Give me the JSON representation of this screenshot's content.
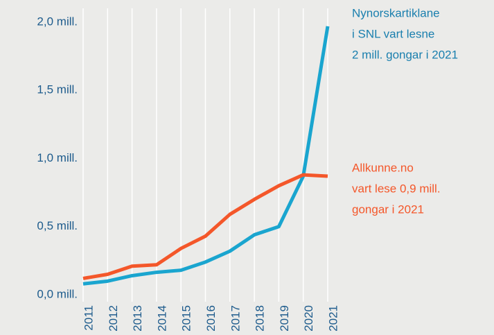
{
  "chart_data": {
    "type": "line",
    "x": [
      2011,
      2012,
      2013,
      2014,
      2015,
      2016,
      2017,
      2018,
      2019,
      2020,
      2021
    ],
    "xlim": [
      2011,
      2021
    ],
    "xticks": [
      2011,
      2012,
      2013,
      2014,
      2015,
      2016,
      2017,
      2018,
      2019,
      2020,
      2021
    ],
    "ylim": [
      0,
      2
    ],
    "yticks": [
      {
        "value": 0,
        "label": "0,0 mill."
      },
      {
        "value": 0.5,
        "label": "0,5 mill."
      },
      {
        "value": 1,
        "label": "1,0 mill."
      },
      {
        "value": 1.5,
        "label": "1,5 mill."
      },
      {
        "value": 2,
        "label": "2,0 mill."
      }
    ],
    "grid": true,
    "series": [
      {
        "name": "Nynorskartiklane i SNL",
        "color": "#1aa5cf",
        "values": [
          0.08,
          0.1,
          0.14,
          0.165,
          0.18,
          0.24,
          0.32,
          0.44,
          0.5,
          0.87,
          1.97
        ]
      },
      {
        "name": "Allkunne.no",
        "color": "#f4572a",
        "values": [
          0.12,
          0.15,
          0.21,
          0.22,
          0.34,
          0.43,
          0.59,
          0.7,
          0.8,
          0.88,
          0.87
        ]
      }
    ],
    "annotations": [
      {
        "lines": [
          "Nynorskartiklane",
          "i SNL vart lesne",
          "2 mill. gongar i 2021"
        ],
        "color": "#1a7fae"
      },
      {
        "lines": [
          "Allkunne.no",
          "vart lese 0,9 mill.",
          "gongar i 2021"
        ],
        "color": "#f4572a"
      }
    ]
  }
}
